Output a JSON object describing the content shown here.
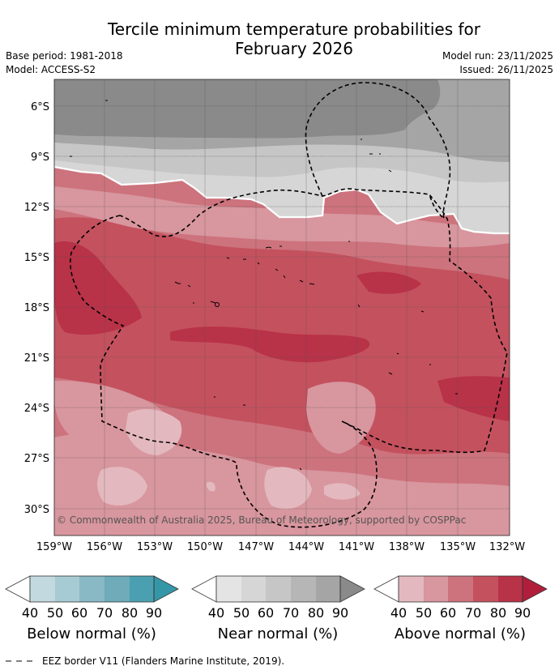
{
  "header": {
    "title_line1": "Tercile minimum temperature probabilities for",
    "title_line2": "February 2026",
    "base_period": "Base period: 1981-2018",
    "model": "Model: ACCESS-S2",
    "model_run": "Model run: 23/11/2025",
    "issued": "Issued: 26/11/2025"
  },
  "map": {
    "lat_labels": [
      "6°S",
      "9°S",
      "12°S",
      "15°S",
      "18°S",
      "21°S",
      "24°S",
      "27°S",
      "30°S"
    ],
    "lon_labels": [
      "159°W",
      "156°W",
      "153°W",
      "150°W",
      "147°W",
      "144°W",
      "141°W",
      "138°W",
      "135°W",
      "132°W"
    ],
    "copyright": "© Commonwealth of Australia 2025, Bureau of Meteorology, supported by COSPPac"
  },
  "legend": {
    "tick_labels": [
      "40",
      "50",
      "60",
      "70",
      "80",
      "90"
    ],
    "below": {
      "title": "Below normal (%)",
      "colors": [
        "#ffffff",
        "#c2d9df",
        "#a7cbd2",
        "#89b9c4",
        "#6fabb9",
        "#4aa0b1",
        "#3596a8"
      ]
    },
    "near": {
      "title": "Near normal (%)",
      "colors": [
        "#ffffff",
        "#e4e4e4",
        "#d6d6d6",
        "#c6c6c6",
        "#b6b6b6",
        "#a5a5a5",
        "#8a8a8a"
      ]
    },
    "above": {
      "title": "Above normal (%)",
      "colors": [
        "#ffffff",
        "#e3b9bf",
        "#d8969e",
        "#cd737d",
        "#c4515e",
        "#b83248",
        "#b01e3c"
      ]
    }
  },
  "footer": {
    "eez_note": "EEZ border V11 (Flanders Marine Institute, 2019)."
  }
}
